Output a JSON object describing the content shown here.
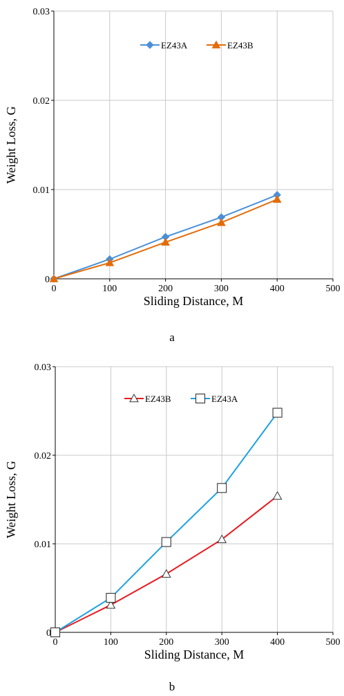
{
  "chart_data": [
    {
      "type": "line",
      "caption": "a",
      "xlabel": "Sliding Distance, M",
      "ylabel": "Weight Loss, G",
      "xlim": [
        0,
        500
      ],
      "ylim": [
        0,
        0.03
      ],
      "x_ticks": [
        "0",
        "100",
        "200",
        "300",
        "400",
        "500"
      ],
      "y_ticks": [
        "0",
        "0.01",
        "0.02",
        "0.03"
      ],
      "grid": true,
      "legend_position": "top-center",
      "x": [
        0,
        100,
        200,
        300,
        400
      ],
      "series": [
        {
          "name": "EZ43A",
          "color": "#4A90D9",
          "marker": "diamond",
          "values": [
            0.0,
            0.0022,
            0.0047,
            0.0069,
            0.0094
          ]
        },
        {
          "name": "EZ43B",
          "color": "#E36C0A",
          "marker": "triangle",
          "values": [
            0.0,
            0.0018,
            0.0041,
            0.0063,
            0.0089
          ]
        }
      ]
    },
    {
      "type": "line",
      "caption": "b",
      "xlabel": "Sliding Distance, M",
      "ylabel": "Weight Loss, G",
      "xlim": [
        0,
        500
      ],
      "ylim": [
        0,
        0.03
      ],
      "x_ticks": [
        "0",
        "100",
        "200",
        "300",
        "400",
        "500"
      ],
      "y_ticks": [
        "0",
        "0.01",
        "0.02",
        "0.03"
      ],
      "grid": true,
      "legend_position": "top-center",
      "x": [
        0,
        100,
        200,
        300,
        400
      ],
      "series": [
        {
          "name": "EZ43B",
          "color": "#E8191E",
          "marker": "triangle-open",
          "values": [
            0.0,
            0.0031,
            0.0066,
            0.0105,
            0.0154
          ]
        },
        {
          "name": "EZ43A",
          "color": "#1BA1E2",
          "marker": "square-open",
          "values": [
            0.0,
            0.0039,
            0.0102,
            0.0163,
            0.0248
          ]
        }
      ]
    }
  ]
}
